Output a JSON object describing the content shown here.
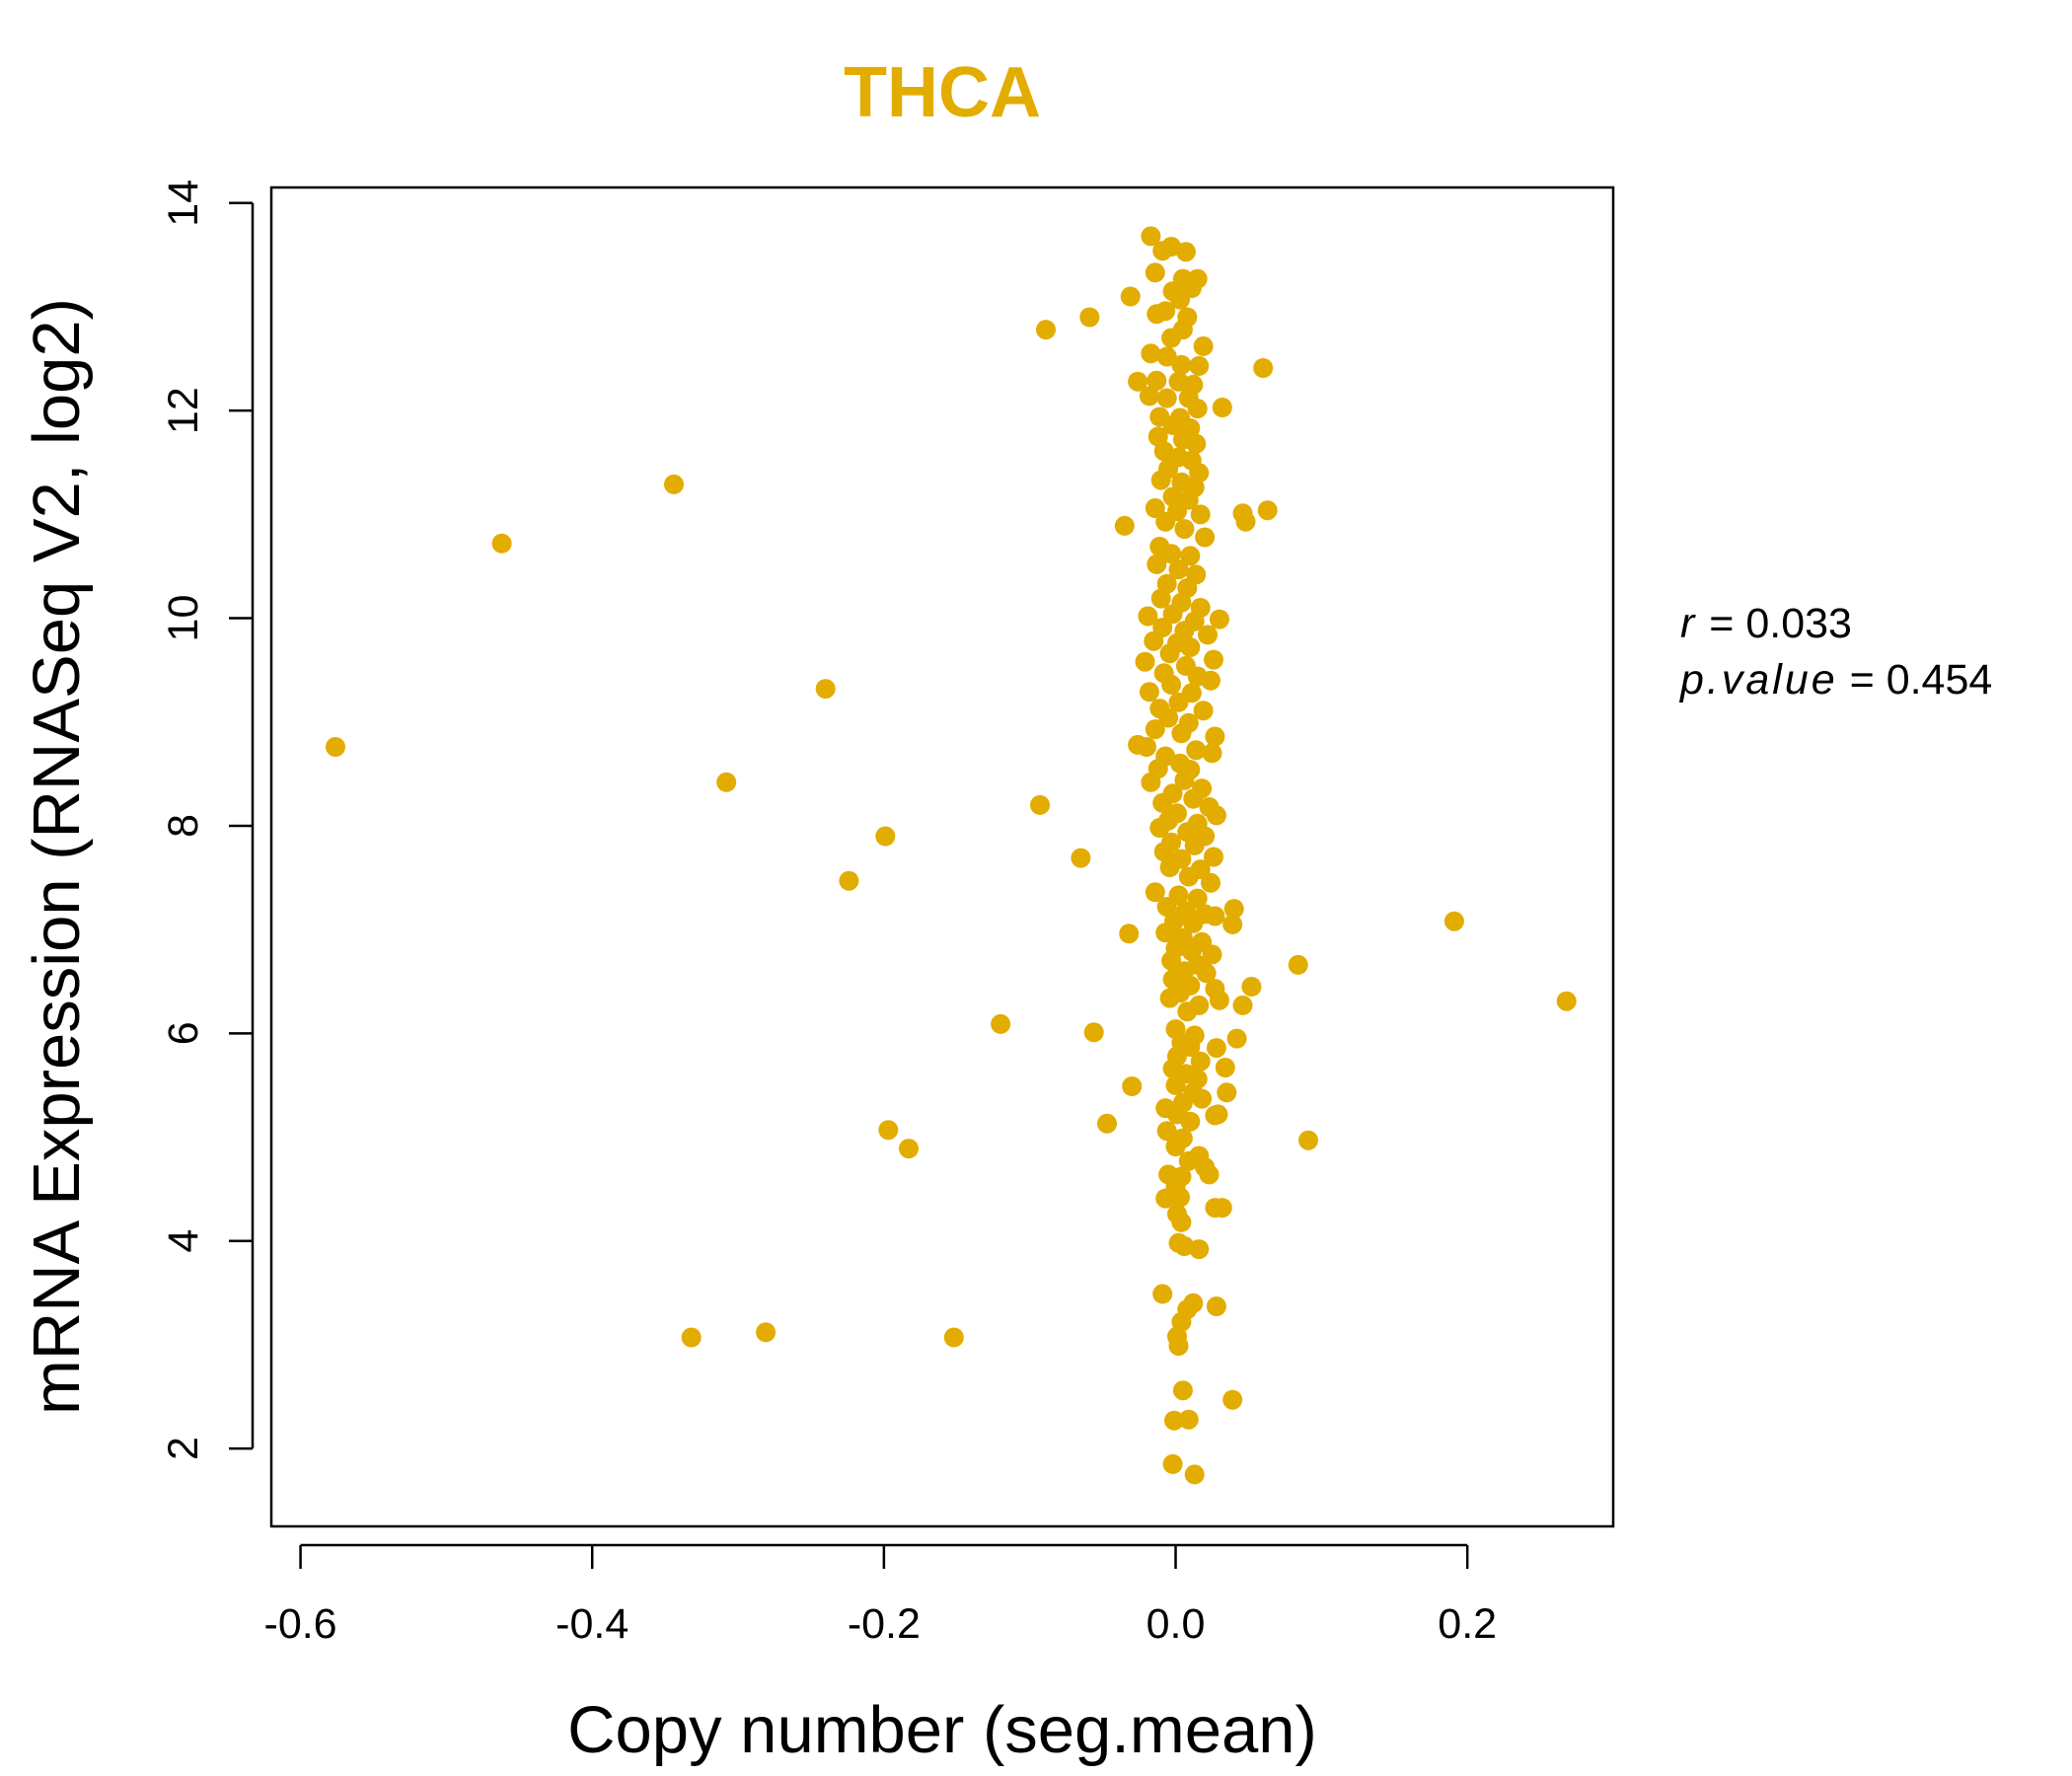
{
  "chart_data": {
    "type": "scatter",
    "title": "THCA",
    "xlabel": "Copy number (seg.mean)",
    "ylabel": "mRNA Expression (RNASeq V2, log2)",
    "xlim": [
      -0.62,
      0.3
    ],
    "ylim": [
      1.25,
      14.15
    ],
    "xticks": [
      -0.6,
      -0.4,
      -0.2,
      0.0,
      0.2
    ],
    "xtick_labels": [
      "-0.6",
      "-0.4",
      "-0.2",
      "0.0",
      "0.2"
    ],
    "yticks": [
      2,
      4,
      6,
      8,
      10,
      12,
      14
    ],
    "ytick_labels": [
      "2",
      "4",
      "6",
      "8",
      "10",
      "12",
      "14"
    ],
    "color": "#E3AC00",
    "stats": {
      "r_label": "r",
      "r_value": "0.033",
      "p_label": "p.value",
      "p_value": "0.454"
    },
    "points": [
      [
        -0.576,
        8.76
      ],
      [
        -0.462,
        10.72
      ],
      [
        -0.344,
        11.29
      ],
      [
        -0.308,
        8.42
      ],
      [
        -0.24,
        9.32
      ],
      [
        -0.224,
        7.47
      ],
      [
        -0.199,
        7.9
      ],
      [
        -0.197,
        5.07
      ],
      [
        -0.183,
        4.89
      ],
      [
        -0.12,
        6.09
      ],
      [
        -0.093,
        8.2
      ],
      [
        -0.089,
        12.78
      ],
      [
        -0.065,
        7.69
      ],
      [
        -0.059,
        12.9
      ],
      [
        -0.056,
        6.01
      ],
      [
        -0.047,
        5.13
      ],
      [
        -0.035,
        10.89
      ],
      [
        -0.032,
        6.96
      ],
      [
        -0.031,
        13.1
      ],
      [
        -0.03,
        5.49
      ],
      [
        -0.332,
        3.07
      ],
      [
        -0.281,
        3.12
      ],
      [
        -0.152,
        3.07
      ],
      [
        0.06,
        12.41
      ],
      [
        0.063,
        11.04
      ],
      [
        0.046,
        11.01
      ],
      [
        0.048,
        10.93
      ],
      [
        0.084,
        6.66
      ],
      [
        0.091,
        4.97
      ],
      [
        0.191,
        7.08
      ],
      [
        0.268,
        6.31
      ],
      [
        0.032,
        12.03
      ],
      [
        0.04,
        7.2
      ],
      [
        0.039,
        7.05
      ],
      [
        0.052,
        6.45
      ],
      [
        0.046,
        6.27
      ],
      [
        0.042,
        5.95
      ],
      [
        0.034,
        5.67
      ],
      [
        0.035,
        5.43
      ],
      [
        0.027,
        5.21
      ],
      [
        0.032,
        4.32
      ],
      [
        0.027,
        4.32
      ],
      [
        0.039,
        2.47
      ],
      [
        0.028,
        3.37
      ],
      [
        -0.017,
        13.68
      ],
      [
        -0.009,
        13.54
      ],
      [
        -0.003,
        13.58
      ],
      [
        0.007,
        13.53
      ],
      [
        -0.014,
        13.33
      ],
      [
        0.005,
        13.27
      ],
      [
        0.015,
        13.27
      ],
      [
        0.011,
        13.18
      ],
      [
        -0.002,
        13.15
      ],
      [
        0.003,
        13.07
      ],
      [
        -0.013,
        12.93
      ],
      [
        -0.007,
        12.96
      ],
      [
        0.008,
        12.9
      ],
      [
        0.005,
        12.78
      ],
      [
        -0.003,
        12.7
      ],
      [
        0.019,
        12.62
      ],
      [
        -0.017,
        12.55
      ],
      [
        -0.006,
        12.52
      ],
      [
        0.004,
        12.44
      ],
      [
        0.016,
        12.43
      ],
      [
        -0.026,
        12.28
      ],
      [
        -0.013,
        12.29
      ],
      [
        0.002,
        12.28
      ],
      [
        0.012,
        12.25
      ],
      [
        -0.018,
        12.14
      ],
      [
        -0.006,
        12.12
      ],
      [
        0.009,
        12.12
      ],
      [
        0.015,
        12.02
      ],
      [
        -0.011,
        11.94
      ],
      [
        0.003,
        11.93
      ],
      [
        -0.002,
        11.86
      ],
      [
        0.01,
        11.83
      ],
      [
        -0.012,
        11.75
      ],
      [
        0.005,
        11.72
      ],
      [
        0.014,
        11.68
      ],
      [
        -0.008,
        11.61
      ],
      [
        0.002,
        11.55
      ],
      [
        0.011,
        11.52
      ],
      [
        -0.005,
        11.44
      ],
      [
        0.016,
        11.4
      ],
      [
        -0.01,
        11.33
      ],
      [
        0.004,
        11.31
      ],
      [
        0.013,
        11.26
      ],
      [
        -0.002,
        11.17
      ],
      [
        0.009,
        11.14
      ],
      [
        -0.014,
        11.06
      ],
      [
        0.001,
        11.03
      ],
      [
        0.017,
        11.0
      ],
      [
        -0.007,
        10.93
      ],
      [
        0.006,
        10.86
      ],
      [
        0.02,
        10.78
      ],
      [
        -0.011,
        10.69
      ],
      [
        -0.003,
        10.62
      ],
      [
        0.01,
        10.6
      ],
      [
        -0.013,
        10.52
      ],
      [
        0.002,
        10.47
      ],
      [
        0.014,
        10.42
      ],
      [
        -0.006,
        10.33
      ],
      [
        0.008,
        10.29
      ],
      [
        -0.01,
        10.19
      ],
      [
        0.004,
        10.15
      ],
      [
        0.017,
        10.1
      ],
      [
        -0.002,
        10.04
      ],
      [
        -0.019,
        10.02
      ],
      [
        0.013,
        9.97
      ],
      [
        0.03,
        9.99
      ],
      [
        -0.009,
        9.91
      ],
      [
        0.006,
        9.88
      ],
      [
        0.022,
        9.84
      ],
      [
        -0.015,
        9.78
      ],
      [
        0.001,
        9.76
      ],
      [
        0.01,
        9.72
      ],
      [
        -0.004,
        9.66
      ],
      [
        0.026,
        9.6
      ],
      [
        -0.021,
        9.58
      ],
      [
        0.007,
        9.54
      ],
      [
        -0.008,
        9.47
      ],
      [
        0.015,
        9.44
      ],
      [
        0.024,
        9.4
      ],
      [
        -0.003,
        9.36
      ],
      [
        -0.018,
        9.29
      ],
      [
        0.011,
        9.28
      ],
      [
        0.002,
        9.19
      ],
      [
        -0.011,
        9.13
      ],
      [
        0.019,
        9.11
      ],
      [
        -0.005,
        9.04
      ],
      [
        0.009,
        8.99
      ],
      [
        -0.014,
        8.93
      ],
      [
        0.004,
        8.89
      ],
      [
        0.027,
        8.86
      ],
      [
        -0.026,
        8.78
      ],
      [
        -0.02,
        8.76
      ],
      [
        0.014,
        8.73
      ],
      [
        0.025,
        8.7
      ],
      [
        -0.007,
        8.67
      ],
      [
        0.003,
        8.6
      ],
      [
        -0.012,
        8.55
      ],
      [
        0.01,
        8.54
      ],
      [
        -0.017,
        8.42
      ],
      [
        0.006,
        8.44
      ],
      [
        0.018,
        8.36
      ],
      [
        -0.002,
        8.31
      ],
      [
        -0.009,
        8.22
      ],
      [
        0.012,
        8.26
      ],
      [
        0.023,
        8.18
      ],
      [
        0.001,
        8.12
      ],
      [
        0.028,
        8.1
      ],
      [
        -0.005,
        8.05
      ],
      [
        0.015,
        8.02
      ],
      [
        -0.011,
        7.98
      ],
      [
        0.008,
        7.94
      ],
      [
        0.02,
        7.9
      ],
      [
        -0.003,
        7.84
      ],
      [
        0.013,
        7.81
      ],
      [
        -0.008,
        7.75
      ],
      [
        0.026,
        7.7
      ],
      [
        0.004,
        7.68
      ],
      [
        -0.004,
        7.6
      ],
      [
        0.017,
        7.58
      ],
      [
        0.009,
        7.51
      ],
      [
        0.024,
        7.45
      ],
      [
        -0.014,
        7.36
      ],
      [
        0.002,
        7.33
      ],
      [
        0.015,
        7.3
      ],
      [
        -0.006,
        7.22
      ],
      [
        0.007,
        7.18
      ],
      [
        0.02,
        7.15
      ],
      [
        0.027,
        7.13
      ],
      [
        -0.001,
        7.08
      ],
      [
        0.012,
        7.06
      ],
      [
        -0.007,
        6.97
      ],
      [
        0.005,
        6.92
      ],
      [
        0.018,
        6.88
      ],
      [
        0.0,
        6.82
      ],
      [
        0.011,
        6.79
      ],
      [
        0.025,
        6.76
      ],
      [
        -0.003,
        6.7
      ],
      [
        0.015,
        6.66
      ],
      [
        0.006,
        6.6
      ],
      [
        0.021,
        6.58
      ],
      [
        -0.002,
        6.52
      ],
      [
        0.01,
        6.46
      ],
      [
        0.027,
        6.43
      ],
      [
        0.003,
        6.39
      ],
      [
        -0.004,
        6.34
      ],
      [
        0.03,
        6.32
      ],
      [
        0.016,
        6.27
      ],
      [
        0.008,
        6.21
      ],
      [
        0.0,
        6.04
      ],
      [
        0.013,
        5.98
      ],
      [
        0.004,
        5.91
      ],
      [
        0.01,
        5.87
      ],
      [
        0.028,
        5.86
      ],
      [
        0.001,
        5.78
      ],
      [
        0.017,
        5.73
      ],
      [
        -0.002,
        5.66
      ],
      [
        0.007,
        5.61
      ],
      [
        0.015,
        5.56
      ],
      [
        0.0,
        5.5
      ],
      [
        0.012,
        5.43
      ],
      [
        0.018,
        5.37
      ],
      [
        0.005,
        5.33
      ],
      [
        -0.007,
        5.28
      ],
      [
        0.001,
        5.22
      ],
      [
        0.029,
        5.22
      ],
      [
        0.01,
        5.15
      ],
      [
        -0.006,
        5.06
      ],
      [
        0.005,
        4.99
      ],
      [
        0.0,
        4.91
      ],
      [
        0.016,
        4.82
      ],
      [
        0.009,
        4.77
      ],
      [
        0.02,
        4.71
      ],
      [
        -0.005,
        4.64
      ],
      [
        0.004,
        4.62
      ],
      [
        0.023,
        4.64
      ],
      [
        0.0,
        4.52
      ],
      [
        -0.007,
        4.41
      ],
      [
        0.003,
        4.42
      ],
      [
        0.001,
        4.26
      ],
      [
        0.004,
        4.18
      ],
      [
        0.002,
        3.98
      ],
      [
        0.006,
        3.95
      ],
      [
        0.016,
        3.92
      ],
      [
        -0.009,
        3.49
      ],
      [
        0.012,
        3.4
      ],
      [
        0.008,
        3.34
      ],
      [
        0.004,
        3.22
      ],
      [
        0.001,
        3.08
      ],
      [
        0.002,
        2.99
      ],
      [
        0.005,
        2.56
      ],
      [
        -0.001,
        2.27
      ],
      [
        0.009,
        2.28
      ],
      [
        -0.002,
        1.85
      ],
      [
        0.013,
        1.75
      ]
    ]
  }
}
